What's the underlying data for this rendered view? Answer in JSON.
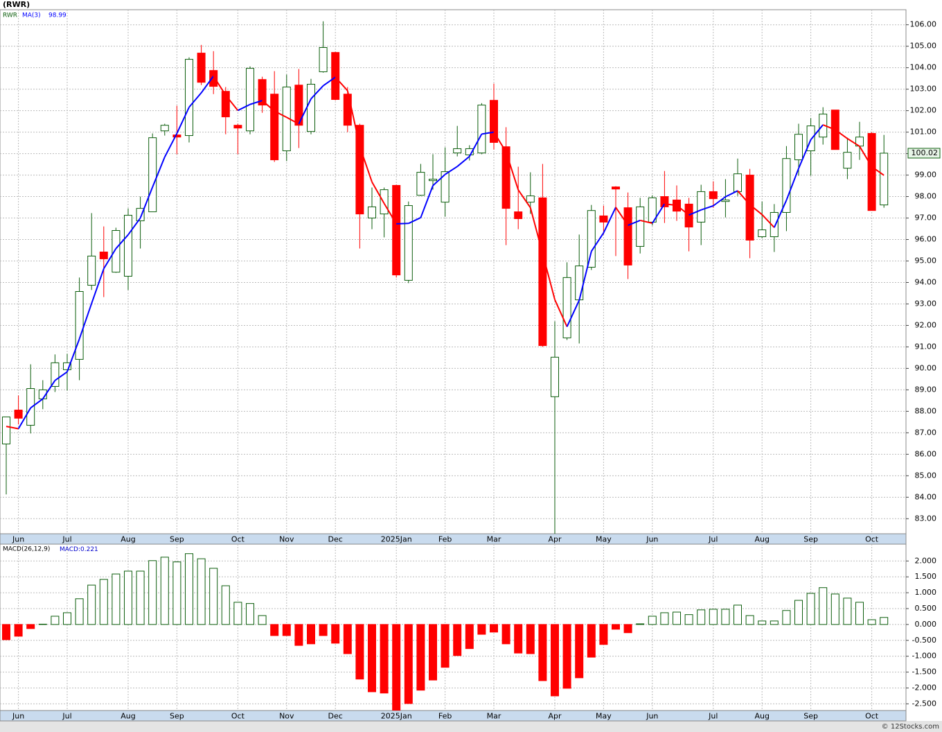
{
  "title": "(RWR)",
  "footer": "© 12Stocks.com",
  "chart_data": [
    {
      "type": "candlestick",
      "categories": [
        null,
        "Jun",
        null,
        null,
        null,
        "Jul",
        null,
        null,
        null,
        null,
        "Aug",
        null,
        null,
        null,
        "Sep",
        null,
        null,
        null,
        null,
        "Oct",
        null,
        null,
        null,
        "Nov",
        null,
        null,
        null,
        "Dec",
        null,
        null,
        null,
        null,
        "2025Jan",
        null,
        null,
        null,
        "Feb",
        null,
        null,
        null,
        "Mar",
        null,
        null,
        null,
        null,
        "Apr",
        null,
        null,
        null,
        "May",
        null,
        null,
        null,
        "Jun",
        null,
        null,
        null,
        null,
        "Jul",
        null,
        null,
        null,
        "Aug",
        null,
        null,
        null,
        "Sep",
        null,
        null,
        null,
        null,
        "Oct",
        null
      ],
      "series": [
        {
          "name": "RWR",
          "color": "#0b5d0b",
          "up_fill": "#ffffff",
          "down_color": "#ff0000",
          "open": [
            86.48,
            88.06,
            87.35,
            88.58,
            89.16,
            89.94,
            90.42,
            93.87,
            95.42,
            94.48,
            94.29,
            96.87,
            97.29,
            101.06,
            100.87,
            100.84,
            104.68,
            103.87,
            102.9,
            101.32,
            101.06,
            103.45,
            102.77,
            100.13,
            103.19,
            101.03,
            103.81,
            104.71,
            102.77,
            101.32,
            97.0,
            97.19,
            98.52,
            94.1,
            98.06,
            98.74,
            97.74,
            100.03,
            99.94,
            100.03,
            102.48,
            100.32,
            97.29,
            97.74,
            97.94,
            88.68,
            91.42,
            93.19,
            94.71,
            97.1,
            98.45,
            97.48,
            95.68,
            96.81,
            98.0,
            97.84,
            97.65,
            96.81,
            98.23,
            97.77,
            98.23,
            99.0,
            96.13,
            96.13,
            97.26,
            99.71,
            100.13,
            100.77,
            102.03,
            99.32,
            100.35,
            100.94,
            97.61
          ],
          "high": [
            87.74,
            88.74,
            90.19,
            89.45,
            90.65,
            90.68,
            94.23,
            97.23,
            96.61,
            96.55,
            97.45,
            98.0,
            100.94,
            101.39,
            102.23,
            104.48,
            105.06,
            104.77,
            103.1,
            101.39,
            104.06,
            103.58,
            103.84,
            103.68,
            103.94,
            103.48,
            106.16,
            104.74,
            103.1,
            101.39,
            98.42,
            98.42,
            98.55,
            97.77,
            99.52,
            99.97,
            100.29,
            101.29,
            100.39,
            102.35,
            103.26,
            101.23,
            99.39,
            99.13,
            99.52,
            92.19,
            94.94,
            96.23,
            97.61,
            97.58,
            98.48,
            98.19,
            97.94,
            98.06,
            99.19,
            98.52,
            97.94,
            98.55,
            98.71,
            98.81,
            99.77,
            99.29,
            97.77,
            97.65,
            100.35,
            101.39,
            101.65,
            102.16,
            102.03,
            100.74,
            101.48,
            101.0,
            100.87
          ],
          "low": [
            84.13,
            87.39,
            86.97,
            88.1,
            88.9,
            88.97,
            89.45,
            93.65,
            93.32,
            94.45,
            93.65,
            95.58,
            97.29,
            100.84,
            99.97,
            100.52,
            103.19,
            102.77,
            100.9,
            99.97,
            100.9,
            101.9,
            99.61,
            99.65,
            100.26,
            100.9,
            103.77,
            102.48,
            101.0,
            95.58,
            96.48,
            96.1,
            94.23,
            93.97,
            98.03,
            98.32,
            97.06,
            99.87,
            99.68,
            99.97,
            100.19,
            95.74,
            96.48,
            97.19,
            91.0,
            82.3,
            91.32,
            91.16,
            94.58,
            96.23,
            95.23,
            94.16,
            95.35,
            96.65,
            96.77,
            96.87,
            95.45,
            95.74,
            97.48,
            97.03,
            98.03,
            95.13,
            96.06,
            95.42,
            96.39,
            98.97,
            98.97,
            100.42,
            100.19,
            98.81,
            99.71,
            97.35,
            97.48
          ],
          "close": [
            87.74,
            87.68,
            89.06,
            89.0,
            90.26,
            90.26,
            93.58,
            95.23,
            95.1,
            96.42,
            97.13,
            97.45,
            100.74,
            101.32,
            100.77,
            104.39,
            103.32,
            103.13,
            101.71,
            101.19,
            103.97,
            102.26,
            99.71,
            103.1,
            101.32,
            103.23,
            104.94,
            102.52,
            101.32,
            97.19,
            97.52,
            98.32,
            94.35,
            97.58,
            99.13,
            98.81,
            99.16,
            100.23,
            100.23,
            102.26,
            100.52,
            97.45,
            96.97,
            98.03,
            91.06,
            90.52,
            94.23,
            94.77,
            97.35,
            96.81,
            98.35,
            94.81,
            97.52,
            97.94,
            97.52,
            97.32,
            96.58,
            98.23,
            97.9,
            97.84,
            99.06,
            95.97,
            96.45,
            97.26,
            99.77,
            100.9,
            101.29,
            101.84,
            100.19,
            100.06,
            100.77,
            97.35,
            100.02
          ]
        },
        {
          "name": "MA(3)",
          "color": "#0000ff",
          "down_color": "#ff0000",
          "values": [
            87.3,
            87.19,
            88.16,
            88.58,
            89.44,
            89.84,
            91.37,
            93.02,
            94.64,
            95.58,
            96.22,
            97.0,
            98.44,
            99.84,
            100.94,
            102.16,
            102.83,
            103.61,
            102.72,
            102.01,
            102.29,
            102.47,
            101.98,
            101.69,
            101.38,
            102.55,
            103.16,
            103.56,
            102.93,
            100.34,
            98.68,
            97.68,
            96.73,
            96.75,
            97.02,
            98.51,
            99.03,
            99.4,
            99.87,
            100.91,
            101.0,
            100.08,
            98.31,
            97.48,
            95.35,
            93.2,
            91.94,
            93.17,
            95.45,
            96.31,
            97.5,
            96.66,
            96.89,
            96.76,
            97.66,
            97.59,
            97.14,
            97.38,
            97.57,
            97.99,
            98.27,
            97.62,
            97.16,
            96.56,
            97.83,
            99.31,
            100.65,
            101.34,
            101.11,
            100.7,
            100.34,
            99.39,
            98.99
          ]
        }
      ],
      "ylim": [
        82.3,
        106.7
      ],
      "yticks": [
        {
          "value": 83,
          "label": "83.00"
        },
        {
          "value": 84,
          "label": "84.00"
        },
        {
          "value": 85,
          "label": "85.00"
        },
        {
          "value": 86,
          "label": "86.00"
        },
        {
          "value": 87,
          "label": "87.00"
        },
        {
          "value": 88,
          "label": "88.00"
        },
        {
          "value": 89,
          "label": "89.00"
        },
        {
          "value": 90,
          "label": "90.00"
        },
        {
          "value": 91,
          "label": "91.00"
        },
        {
          "value": 92,
          "label": "92.00"
        },
        {
          "value": 93,
          "label": "93.00"
        },
        {
          "value": 94,
          "label": "94.00"
        },
        {
          "value": 95,
          "label": "95.00"
        },
        {
          "value": 96,
          "label": "96.00"
        },
        {
          "value": 97,
          "label": "97.00"
        },
        {
          "value": 98,
          "label": "98.00"
        },
        {
          "value": 99,
          "label": "99.00"
        },
        {
          "value": 100,
          "label": "100.00"
        },
        {
          "value": 101,
          "label": "101.00"
        },
        {
          "value": 102,
          "label": "102.00"
        },
        {
          "value": 103,
          "label": "103.00"
        },
        {
          "value": 104,
          "label": "104.00"
        },
        {
          "value": 105,
          "label": "105.00"
        },
        {
          "value": 106,
          "label": "106.00"
        }
      ],
      "grid": true
    },
    {
      "type": "bar",
      "title": "MACD(26,12,9)",
      "categories": [
        null,
        "Jun",
        null,
        null,
        null,
        "Jul",
        null,
        null,
        null,
        null,
        "Aug",
        null,
        null,
        null,
        "Sep",
        null,
        null,
        null,
        null,
        "Oct",
        null,
        null,
        null,
        "Nov",
        null,
        null,
        null,
        "Dec",
        null,
        null,
        null,
        null,
        "2025Jan",
        null,
        null,
        null,
        "Feb",
        null,
        null,
        null,
        "Mar",
        null,
        null,
        null,
        null,
        "Apr",
        null,
        null,
        null,
        "May",
        null,
        null,
        null,
        "Jun",
        null,
        null,
        null,
        null,
        "Jul",
        null,
        null,
        null,
        "Aug",
        null,
        null,
        null,
        "Sep",
        null,
        null,
        null,
        null,
        "Oct",
        null
      ],
      "series": [
        {
          "name": "MACD:",
          "color": "#0b5d0b",
          "down_color": "#ff0000",
          "values": [
            -0.48,
            -0.37,
            -0.13,
            0.01,
            0.26,
            0.37,
            0.81,
            1.24,
            1.42,
            1.59,
            1.68,
            1.68,
            2.01,
            2.12,
            1.97,
            2.23,
            2.07,
            1.77,
            1.22,
            0.7,
            0.66,
            0.28,
            -0.35,
            -0.35,
            -0.66,
            -0.61,
            -0.35,
            -0.59,
            -0.92,
            -1.72,
            -2.12,
            -2.16,
            -2.7,
            -2.49,
            -2.07,
            -1.75,
            -1.35,
            -0.98,
            -0.76,
            -0.31,
            -0.24,
            -0.61,
            -0.9,
            -0.92,
            -1.77,
            -2.25,
            -2.01,
            -1.68,
            -1.03,
            -0.63,
            -0.15,
            -0.26,
            0.02,
            0.26,
            0.37,
            0.39,
            0.31,
            0.46,
            0.48,
            0.48,
            0.61,
            0.28,
            0.11,
            0.11,
            0.44,
            0.76,
            0.98,
            1.16,
            0.96,
            0.83,
            0.7,
            0.15,
            0.221
          ]
        }
      ],
      "ylim": [
        -2.71,
        2.53
      ],
      "yticks": [
        {
          "value": -2.5,
          "label": "-2.500"
        },
        {
          "value": -2,
          "label": "-2.000"
        },
        {
          "value": -1.5,
          "label": "-1.500"
        },
        {
          "value": -1,
          "label": "-1.000"
        },
        {
          "value": -0.5,
          "label": "-0.500"
        },
        {
          "value": 0,
          "label": "0.000"
        },
        {
          "value": 0.5,
          "label": "0.500"
        },
        {
          "value": 1,
          "label": "1.000"
        },
        {
          "value": 1.5,
          "label": "1.500"
        },
        {
          "value": 2,
          "label": "2.000"
        }
      ],
      "grid": true
    }
  ]
}
